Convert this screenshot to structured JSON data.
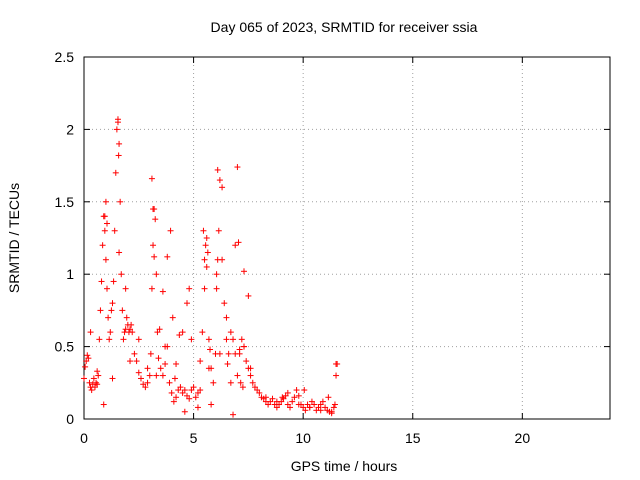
{
  "chart_data": {
    "type": "scatter",
    "title": "Day 065 of 2023, SRMTID for receiver ssia",
    "xlabel": "GPS time / hours",
    "ylabel": "SRMTID / TECUs",
    "xlim": [
      0,
      24
    ],
    "ylim": [
      0,
      2.5
    ],
    "xticks": [
      0,
      5,
      10,
      15,
      20
    ],
    "xtick_labels": [
      "0",
      "5",
      "10",
      "15",
      "20"
    ],
    "yticks": [
      0,
      0.5,
      1,
      1.5,
      2,
      2.5
    ],
    "ytick_labels": [
      "0",
      "0.5",
      "1",
      "1.5",
      "2",
      "2.5"
    ],
    "grid": true,
    "marker": "plus",
    "series": [
      {
        "name": "SRMTID",
        "color": "#ff0000",
        "x": [
          0.0,
          0.05,
          0.1,
          0.15,
          0.2,
          0.25,
          0.3,
          0.35,
          0.4,
          0.45,
          0.5,
          0.55,
          0.6,
          0.65,
          0.7,
          0.75,
          0.8,
          0.85,
          0.9,
          0.95,
          1.0,
          1.05,
          1.1,
          1.15,
          1.2,
          1.25,
          1.3,
          1.35,
          1.4,
          1.45,
          1.5,
          1.55,
          1.6,
          1.65,
          1.7,
          1.75,
          1.8,
          1.85,
          1.9,
          1.95,
          2.0,
          2.05,
          2.1,
          2.15,
          2.2,
          2.3,
          2.4,
          2.5,
          2.6,
          2.7,
          2.8,
          2.9,
          3.0,
          3.05,
          3.1,
          3.15,
          3.2,
          3.25,
          3.3,
          3.35,
          3.4,
          3.5,
          3.6,
          3.7,
          3.8,
          3.9,
          4.0,
          4.1,
          4.2,
          4.3,
          4.4,
          4.5,
          4.6,
          4.7,
          4.8,
          4.9,
          5.0,
          5.1,
          5.2,
          5.3,
          5.4,
          5.5,
          5.55,
          5.6,
          5.65,
          5.7,
          5.8,
          5.9,
          6.0,
          6.05,
          6.1,
          6.15,
          6.2,
          6.3,
          6.4,
          6.5,
          6.6,
          6.7,
          6.8,
          6.9,
          7.0,
          7.1,
          7.2,
          7.3,
          7.4,
          7.5,
          7.6,
          7.7,
          7.8,
          7.9,
          8.0,
          8.1,
          8.2,
          8.3,
          8.4,
          8.5,
          8.6,
          8.7,
          8.8,
          8.9,
          9.0,
          9.1,
          9.2,
          9.3,
          9.4,
          9.5,
          9.6,
          9.7,
          9.8,
          9.9,
          10.0,
          10.1,
          10.2,
          10.3,
          10.4,
          10.5,
          10.6,
          10.7,
          10.8,
          10.9,
          11.0,
          11.1,
          11.2,
          11.3,
          11.4,
          11.5,
          11.55,
          0.9,
          0.95,
          1.0,
          1.05,
          1.6,
          1.55,
          1.58,
          3.1,
          3.15,
          3.2,
          3.6,
          3.8,
          3.95,
          4.05,
          4.5,
          4.7,
          4.8,
          4.9,
          5.3,
          5.45,
          5.5,
          5.6,
          6.05,
          6.1,
          6.3,
          6.5,
          6.9,
          7.0,
          7.05,
          7.3,
          7.5,
          0.3,
          0.6,
          1.3,
          1.9,
          2.1,
          2.5,
          2.9,
          3.3,
          3.7,
          4.2,
          4.6,
          5.2,
          5.8,
          6.2,
          6.7,
          7.3,
          7.6,
          8.3,
          8.8,
          9.3,
          9.8,
          10.3,
          10.8,
          11.3,
          5.7,
          6.8,
          7.1,
          3.45,
          4.15,
          4.35,
          5.75,
          6.55,
          7.15,
          7.25,
          9.05,
          10.05,
          11.15,
          11.45,
          11.5
        ],
        "y": [
          0.28,
          0.36,
          0.4,
          0.44,
          0.42,
          0.25,
          0.22,
          0.2,
          0.24,
          0.28,
          0.22,
          0.25,
          0.24,
          0.3,
          0.55,
          0.75,
          0.95,
          1.2,
          1.4,
          1.3,
          1.1,
          0.9,
          0.7,
          0.55,
          0.6,
          0.75,
          0.8,
          0.95,
          1.3,
          1.7,
          2.0,
          2.05,
          1.9,
          1.5,
          1.0,
          0.75,
          0.55,
          0.6,
          0.62,
          0.7,
          0.65,
          0.6,
          0.62,
          0.65,
          0.6,
          0.45,
          0.4,
          0.32,
          0.28,
          0.24,
          0.22,
          0.25,
          0.3,
          0.45,
          0.9,
          1.2,
          1.45,
          1.38,
          1.0,
          0.6,
          0.42,
          0.35,
          0.3,
          0.38,
          0.5,
          0.25,
          0.18,
          0.12,
          0.15,
          0.2,
          0.22,
          0.18,
          0.2,
          0.16,
          0.14,
          0.2,
          0.22,
          0.15,
          0.18,
          0.2,
          0.6,
          0.9,
          1.2,
          1.25,
          1.15,
          0.55,
          0.35,
          0.25,
          0.45,
          0.9,
          1.1,
          1.3,
          1.65,
          1.1,
          0.8,
          0.55,
          0.45,
          0.6,
          0.55,
          0.45,
          0.3,
          0.48,
          0.55,
          0.5,
          0.4,
          0.35,
          0.3,
          0.25,
          0.22,
          0.2,
          0.18,
          0.15,
          0.14,
          0.12,
          0.1,
          0.12,
          0.14,
          0.1,
          0.08,
          0.1,
          0.12,
          0.14,
          0.16,
          0.1,
          0.08,
          0.12,
          0.15,
          0.2,
          0.16,
          0.1,
          0.08,
          0.06,
          0.1,
          0.08,
          0.12,
          0.1,
          0.06,
          0.08,
          0.1,
          0.12,
          0.08,
          0.06,
          0.05,
          0.04,
          0.08,
          0.3,
          0.38,
          0.1,
          1.4,
          1.5,
          1.35,
          1.15,
          2.07,
          1.82,
          1.66,
          1.45,
          1.12,
          0.88,
          1.12,
          1.3,
          0.7,
          0.6,
          0.8,
          0.9,
          0.55,
          0.4,
          1.3,
          1.1,
          1.05,
          1.0,
          1.72,
          1.6,
          0.7,
          1.2,
          1.74,
          1.22,
          1.02,
          0.85,
          0.6,
          0.33,
          0.28,
          0.9,
          0.4,
          0.55,
          0.35,
          0.3,
          0.5,
          0.38,
          0.05,
          0.08,
          0.1,
          0.45,
          0.25,
          0.5,
          0.35,
          0.15,
          0.12,
          0.18,
          0.1,
          0.08,
          0.06,
          0.05,
          0.35,
          0.03,
          0.45,
          0.62,
          0.28,
          0.58,
          0.48,
          0.38,
          0.25,
          0.22,
          0.15,
          0.2,
          0.15,
          0.1,
          0.38
        ]
      }
    ]
  }
}
